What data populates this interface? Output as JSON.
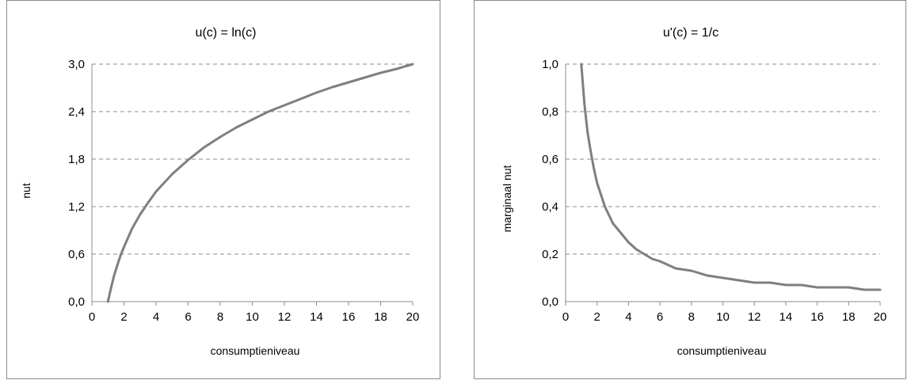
{
  "chart_data": [
    {
      "type": "line",
      "title": "u(c) = ln(c)",
      "xlabel": "consumptieniveau",
      "ylabel": "nut",
      "xlim": [
        0,
        20
      ],
      "ylim": [
        0,
        3
      ],
      "xticks": [
        "0",
        "2",
        "4",
        "6",
        "8",
        "10",
        "12",
        "14",
        "16",
        "18",
        "20"
      ],
      "yticks": [
        "0,0",
        "0,6",
        "1,2",
        "1,8",
        "2,4",
        "3,0"
      ],
      "grid": true,
      "series": [
        {
          "color": "#7f7f7f",
          "x": [
            1,
            1.2,
            1.4,
            1.6,
            1.8,
            2,
            2.5,
            3,
            3.5,
            4,
            4.5,
            5,
            5.5,
            6,
            7,
            8,
            9,
            10,
            11,
            12,
            13,
            14,
            15,
            16,
            17,
            18,
            19,
            20
          ],
          "y": [
            0,
            0.18,
            0.34,
            0.47,
            0.59,
            0.69,
            0.92,
            1.1,
            1.25,
            1.39,
            1.5,
            1.61,
            1.7,
            1.79,
            1.95,
            2.08,
            2.2,
            2.3,
            2.4,
            2.48,
            2.56,
            2.64,
            2.71,
            2.77,
            2.83,
            2.89,
            2.94,
            3.0
          ]
        }
      ]
    },
    {
      "type": "line",
      "title": "u'(c) = 1/c",
      "xlabel": "consumptieniveau",
      "ylabel": "marginaal nut",
      "xlim": [
        0,
        20
      ],
      "ylim": [
        0,
        1
      ],
      "xticks": [
        "0",
        "2",
        "4",
        "6",
        "8",
        "10",
        "12",
        "14",
        "16",
        "18",
        "20"
      ],
      "yticks": [
        "0,0",
        "0,2",
        "0,4",
        "0,6",
        "0,8",
        "1,0"
      ],
      "grid": true,
      "series": [
        {
          "color": "#7f7f7f",
          "x": [
            1,
            1.2,
            1.4,
            1.6,
            1.8,
            2,
            2.5,
            3,
            3.5,
            4,
            4.5,
            5,
            5.5,
            6,
            7,
            8,
            9,
            10,
            11,
            12,
            13,
            14,
            15,
            16,
            17,
            18,
            19,
            20
          ],
          "y": [
            1,
            0.83,
            0.71,
            0.63,
            0.56,
            0.5,
            0.4,
            0.33,
            0.29,
            0.25,
            0.22,
            0.2,
            0.18,
            0.17,
            0.14,
            0.13,
            0.11,
            0.1,
            0.09,
            0.08,
            0.08,
            0.07,
            0.07,
            0.06,
            0.06,
            0.06,
            0.05,
            0.05
          ]
        }
      ]
    }
  ]
}
